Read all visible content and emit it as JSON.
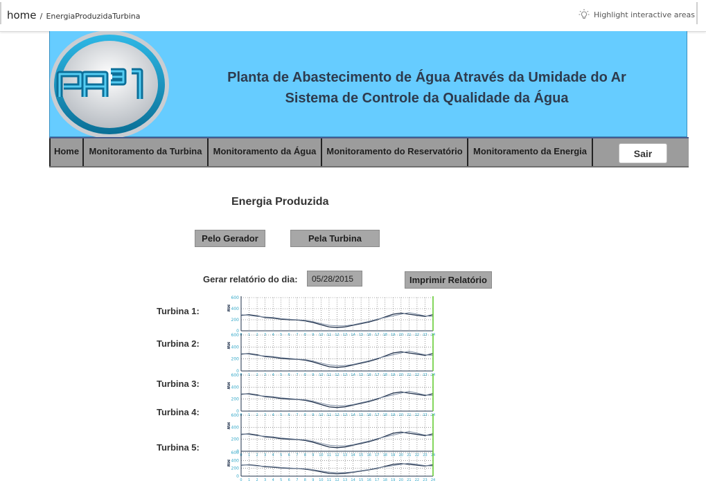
{
  "topbar": {
    "home": "home",
    "separator": "/",
    "page": "EnergiaProduzidaTurbina",
    "highlight": "Highlight interactive areas",
    "highlight_icon": "lightbulb-icon"
  },
  "header": {
    "logo_text": "PA³1",
    "title_line1": "Planta de Abastecimento de Água Através da Umidade do Ar",
    "title_line2": "Sistema de Controle da Qualidade da Água",
    "banner_color": "#66ccff"
  },
  "nav": {
    "items": [
      {
        "label": "Home"
      },
      {
        "label": "Monitoramento da Turbina"
      },
      {
        "label": "Monitoramento da Água"
      },
      {
        "label": "Monitoramento do Reservatório"
      },
      {
        "label": "Monitoramento da Energia"
      }
    ],
    "logout": "Sair"
  },
  "main": {
    "title": "Energia Produzida",
    "btn_generator": "Pelo Gerador",
    "btn_turbine": "Pela Turbina",
    "report_label": "Gerar relatório do dia:",
    "report_date": "05/28/2015",
    "print_button": "Imprimir Relatório",
    "turbines": [
      {
        "label": "Turbina 1:"
      },
      {
        "label": "Turbina 2:"
      },
      {
        "label": "Turbina 3:"
      },
      {
        "label": "Turbina 4:"
      },
      {
        "label": "Turbina 5:"
      }
    ]
  },
  "chart_data": {
    "type": "line",
    "ylabel": "MW",
    "ylim": [
      0,
      600
    ],
    "yticks": [
      0,
      200,
      400,
      600
    ],
    "xticks": [
      0,
      1,
      2,
      3,
      4,
      5,
      6,
      7,
      8,
      9,
      10,
      11,
      12,
      13,
      14,
      15,
      16,
      17,
      18,
      19,
      20,
      21,
      22,
      23,
      24
    ],
    "grid": true,
    "x": [
      0,
      1,
      2,
      3,
      4,
      5,
      6,
      7,
      8,
      9,
      10,
      11,
      12,
      13,
      14,
      15,
      16,
      17,
      18,
      19,
      20,
      21,
      22,
      23,
      24
    ],
    "series": [
      {
        "values": [
          280,
          290,
          270,
          240,
          230,
          210,
          200,
          195,
          180,
          150,
          110,
          70,
          60,
          70,
          100,
          130,
          160,
          200,
          250,
          300,
          320,
          300,
          280,
          260,
          290
        ]
      },
      {
        "values": [
          290,
          280,
          260,
          250,
          240,
          220,
          210,
          200,
          190,
          165,
          130,
          100,
          90,
          90,
          110,
          140,
          170,
          210,
          240,
          270,
          300,
          330,
          300,
          270,
          260
        ]
      }
    ],
    "line_colors": [
      "#1e2f4a",
      "#7a8aa0"
    ],
    "marker_color": "#66cc33"
  }
}
